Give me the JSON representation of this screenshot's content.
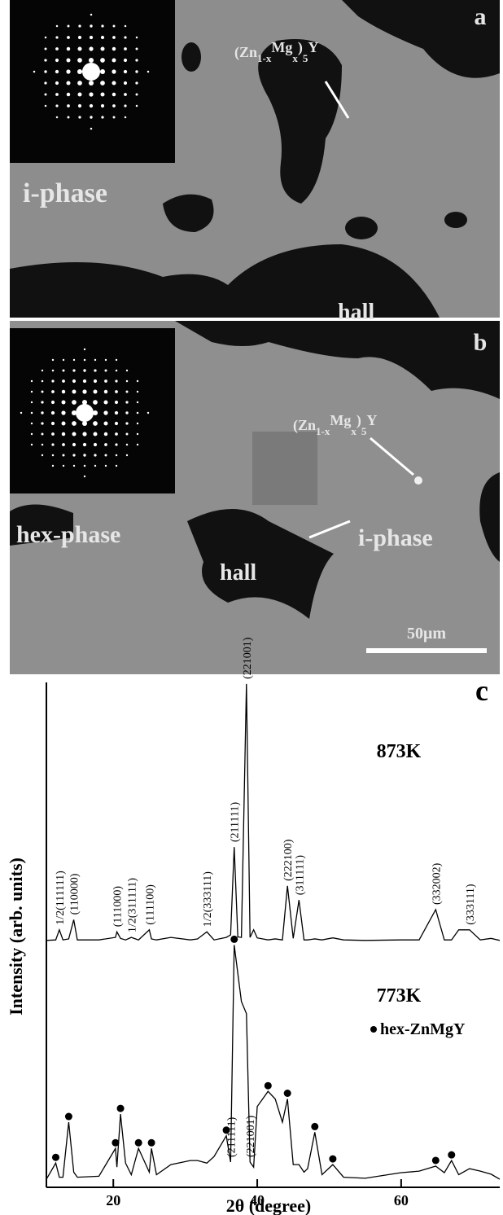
{
  "panels": [
    {
      "letter": "a",
      "formula": [
        "(Zn",
        "1-x",
        "Mg",
        "x",
        ")",
        "5",
        "Y"
      ],
      "phase": "i-phase",
      "hole": "hall"
    },
    {
      "letter": "b",
      "formula": [
        "(Zn",
        "1-x",
        "Mg",
        "x",
        ")",
        "5",
        "Y"
      ],
      "phase": "hex-phase",
      "second_phase": "i-phase",
      "hole": "hall",
      "scale_bar": "50μm"
    }
  ],
  "chart_data": {
    "type": "line",
    "letter": "c",
    "xlabel": "2θ (degree)",
    "ylabel": "Intensity (arb. units)",
    "xlim": [
      10.7,
      73.7
    ],
    "xticks": [
      20,
      40,
      60
    ],
    "ylim": [
      0,
      100
    ],
    "marker_legend": "hex-ZnMgY",
    "x": [
      10.7,
      12,
      12.5,
      13,
      13.8,
      14.5,
      15,
      18,
      20.3,
      20.5,
      21,
      21.7,
      22.5,
      23.5,
      25,
      25.3,
      26,
      28,
      30.7,
      31.7,
      33,
      34,
      35.7,
      36.3,
      36.8,
      37.3,
      37.8,
      38.5,
      39,
      39.5,
      40,
      41.5,
      42.5,
      43.5,
      44.2,
      45,
      45.8,
      46.5,
      47,
      48,
      49,
      50.5,
      52,
      55,
      60,
      62.5,
      64.8,
      66,
      67,
      68,
      69.5,
      71,
      72.5,
      73.7
    ],
    "series": [
      {
        "name": "873K",
        "color": "#000000",
        "values": [
          48.9,
          49,
          51,
          49,
          49.2,
          53,
          49,
          49,
          49.5,
          50.6,
          49.3,
          49,
          49.5,
          49,
          51,
          49.2,
          49,
          49.5,
          49,
          49.2,
          50.6,
          49,
          49.5,
          50,
          67.4,
          49.6,
          49.5,
          99.7,
          49.5,
          51,
          49.4,
          49,
          49.2,
          49,
          59.7,
          49.3,
          56.9,
          49,
          49,
          49.2,
          49,
          49.4,
          49,
          48.9,
          49,
          49,
          55,
          49,
          49,
          51,
          51,
          49,
          49.3,
          48.9
        ]
      },
      {
        "name": "773K",
        "color": "#000000",
        "values": [
          1.6,
          4.8,
          2,
          2,
          12.9,
          3,
          2,
          2.2,
          7.7,
          4,
          14.5,
          4.8,
          2.5,
          7.7,
          3,
          7.7,
          2.5,
          4.5,
          5.3,
          5.3,
          4.8,
          6.1,
          10.2,
          5,
          48,
          42.4,
          36.8,
          34.4,
          5,
          4,
          16,
          19,
          17.5,
          12.9,
          17.5,
          4.5,
          4.5,
          3,
          3.7,
          10.9,
          2.5,
          4.5,
          2,
          1.8,
          2.9,
          3.2,
          4.2,
          2.9,
          5.3,
          2.5,
          3.7,
          3.2,
          2.6,
          1.6
        ]
      }
    ],
    "annotations": [
      {
        "text": "1/2(111111)",
        "x": 12.5,
        "series": 0
      },
      {
        "text": "(110000)",
        "x": 14.5,
        "series": 0
      },
      {
        "text": "(111000)",
        "x": 20.5,
        "series": 0
      },
      {
        "text": "1/2(311111)",
        "x": 22.5,
        "series": 0
      },
      {
        "text": "(111100)",
        "x": 25,
        "series": 0
      },
      {
        "text": "1/2(333111)",
        "x": 33,
        "series": 0
      },
      {
        "text": "(211111)",
        "x": 36.8,
        "series": 0
      },
      {
        "text": "(221001)",
        "x": 38.5,
        "series": 0
      },
      {
        "text": "(222100)",
        "x": 44.2,
        "series": 0
      },
      {
        "text": "(311111)",
        "x": 45.8,
        "series": 0
      },
      {
        "text": "(332002)",
        "x": 64.8,
        "series": 0
      },
      {
        "text": "(333111)",
        "x": 69.5,
        "series": 0
      },
      {
        "text": "(211111)",
        "x": 36.3,
        "series": 1
      },
      {
        "text": "(221001)",
        "x": 39,
        "series": 1
      }
    ]
  }
}
